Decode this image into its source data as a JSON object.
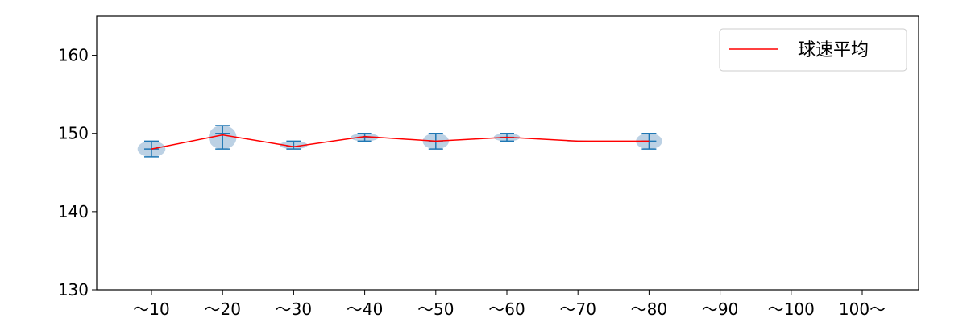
{
  "chart_data": {
    "type": "violin",
    "categories": [
      "～10",
      "～20",
      "～30",
      "～40",
      "～50",
      "～60",
      "～70",
      "～80",
      "～90",
      "～100",
      "100～"
    ],
    "series": [
      {
        "name": "球速平均",
        "color": "#ff0000",
        "mean": [
          148.0,
          149.8,
          148.3,
          149.6,
          149.0,
          149.5,
          149.0,
          149.0,
          null,
          null,
          null
        ]
      }
    ],
    "distribution": {
      "color": "#1f77b4",
      "body_color": "#b8cfe3",
      "min": [
        147,
        148,
        148,
        149,
        148,
        149,
        149,
        148,
        null,
        null,
        null
      ],
      "median": [
        148,
        150,
        148.3,
        149.5,
        149,
        149.5,
        149,
        149,
        null,
        null,
        null
      ],
      "max": [
        149,
        151,
        149,
        150,
        150,
        150,
        149,
        150,
        null,
        null,
        null
      ],
      "density_width": [
        0.48,
        0.48,
        0.48,
        0.48,
        0.45,
        0.45,
        0.4,
        0.45,
        0,
        0,
        0
      ]
    },
    "yticks": [
      130,
      140,
      150,
      160
    ],
    "ylim": [
      130,
      165
    ],
    "xlabel": "",
    "ylabel": "",
    "title": "",
    "legend_position": "upper-right",
    "grid": false
  }
}
